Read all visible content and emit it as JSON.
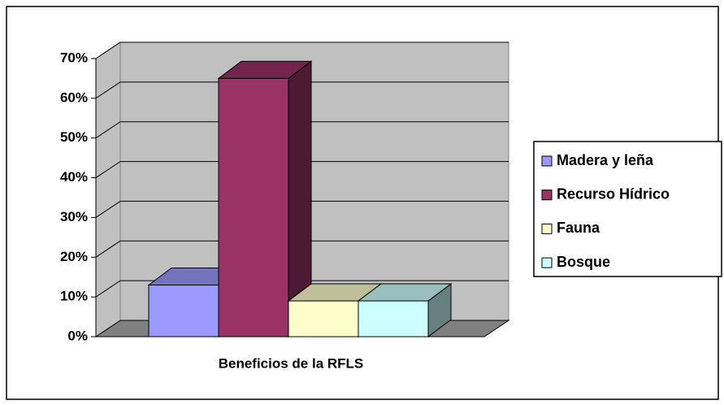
{
  "chart_data": {
    "type": "bar",
    "categories": [
      "Beneficios de la RFLS"
    ],
    "series": [
      {
        "name": "Madera y leña",
        "color": "#9999ff",
        "values": [
          13
        ]
      },
      {
        "name": "Recurso Hídrico",
        "color": "#993366",
        "values": [
          65
        ]
      },
      {
        "name": "Fauna",
        "color": "#ffffcc",
        "values": [
          9
        ]
      },
      {
        "name": "Bosque",
        "color": "#ccffff",
        "values": [
          9
        ]
      }
    ],
    "ylim": [
      0,
      70
    ],
    "yticks": [
      {
        "value": 0,
        "label": "0%"
      },
      {
        "value": 10,
        "label": "10%"
      },
      {
        "value": 20,
        "label": "20%"
      },
      {
        "value": 30,
        "label": "30%"
      },
      {
        "value": 40,
        "label": "40%"
      },
      {
        "value": 50,
        "label": "50%"
      },
      {
        "value": 60,
        "label": "60%"
      },
      {
        "value": 70,
        "label": "70%"
      }
    ],
    "grid": true,
    "legend": "right"
  }
}
